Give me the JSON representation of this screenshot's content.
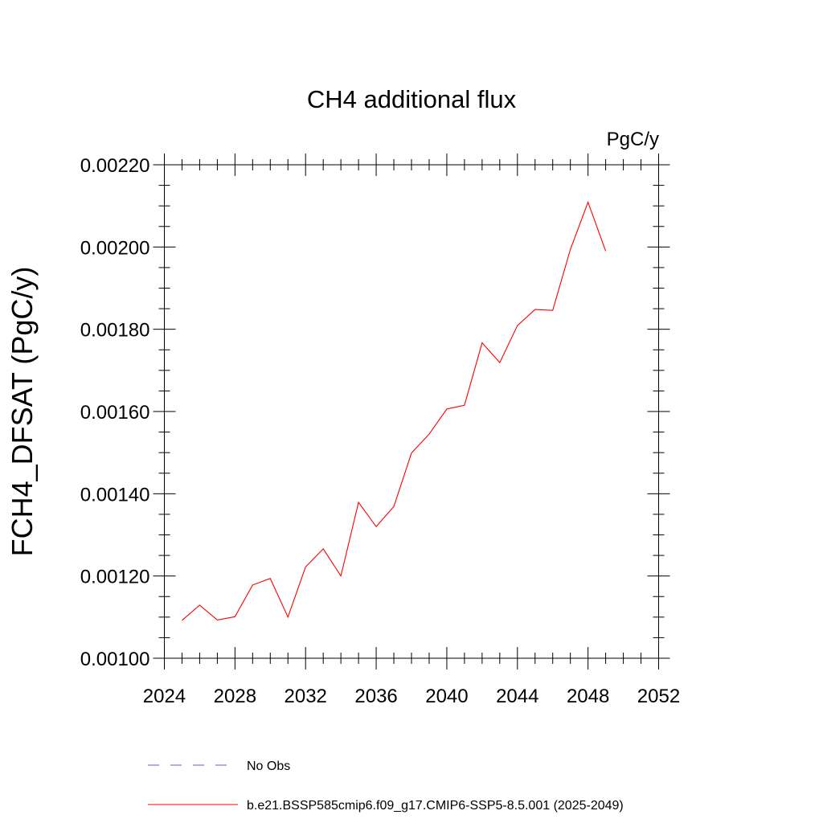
{
  "chart_data": {
    "type": "line",
    "title": "CH4 additional flux",
    "units": "PgC/y",
    "ylabel": "FCH4_DFSAT  (PgC/y)",
    "xlabel": "",
    "xlim": [
      2024,
      2052
    ],
    "ylim": [
      0.001,
      0.0022
    ],
    "xticks": [
      2024,
      2028,
      2032,
      2036,
      2040,
      2044,
      2048,
      2052
    ],
    "xtick_labels": [
      "2024",
      "2028",
      "2032",
      "2036",
      "2040",
      "2044",
      "2048",
      "2052"
    ],
    "yticks": [
      0.001,
      0.0012,
      0.0014,
      0.0016,
      0.0018,
      0.002,
      0.0022
    ],
    "ytick_labels": [
      "0.00100",
      "0.00120",
      "0.00140",
      "0.00160",
      "0.00180",
      "0.00200",
      "0.00220"
    ],
    "grid": false,
    "legend_position": "bottom",
    "series": [
      {
        "name": "b.e21.BSSP585cmip6.f09_g17.CMIP6-SSP5-8.5.001 (2025-2049)",
        "color": "#ff0000",
        "style": "solid",
        "x": [
          2025,
          2026,
          2027,
          2028,
          2029,
          2030,
          2031,
          2032,
          2033,
          2034,
          2035,
          2036,
          2037,
          2038,
          2039,
          2040,
          2041,
          2042,
          2043,
          2044,
          2045,
          2046,
          2047,
          2048,
          2049
        ],
        "values": [
          0.001092,
          0.001129,
          0.001093,
          0.001101,
          0.001178,
          0.001194,
          0.0011,
          0.001222,
          0.001266,
          0.0012,
          0.001379,
          0.00132,
          0.001369,
          0.001499,
          0.001545,
          0.001606,
          0.001615,
          0.001767,
          0.001719,
          0.001809,
          0.001848,
          0.001846,
          0.001994,
          0.002109,
          0.00199
        ]
      }
    ],
    "legend": [
      {
        "label": "No Obs",
        "color": "#6a5acd",
        "style": "dashed"
      },
      {
        "label": "b.e21.BSSP585cmip6.f09_g17.CMIP6-SSP5-8.5.001 (2025-2049)",
        "color": "#ff0000",
        "style": "solid"
      }
    ]
  }
}
